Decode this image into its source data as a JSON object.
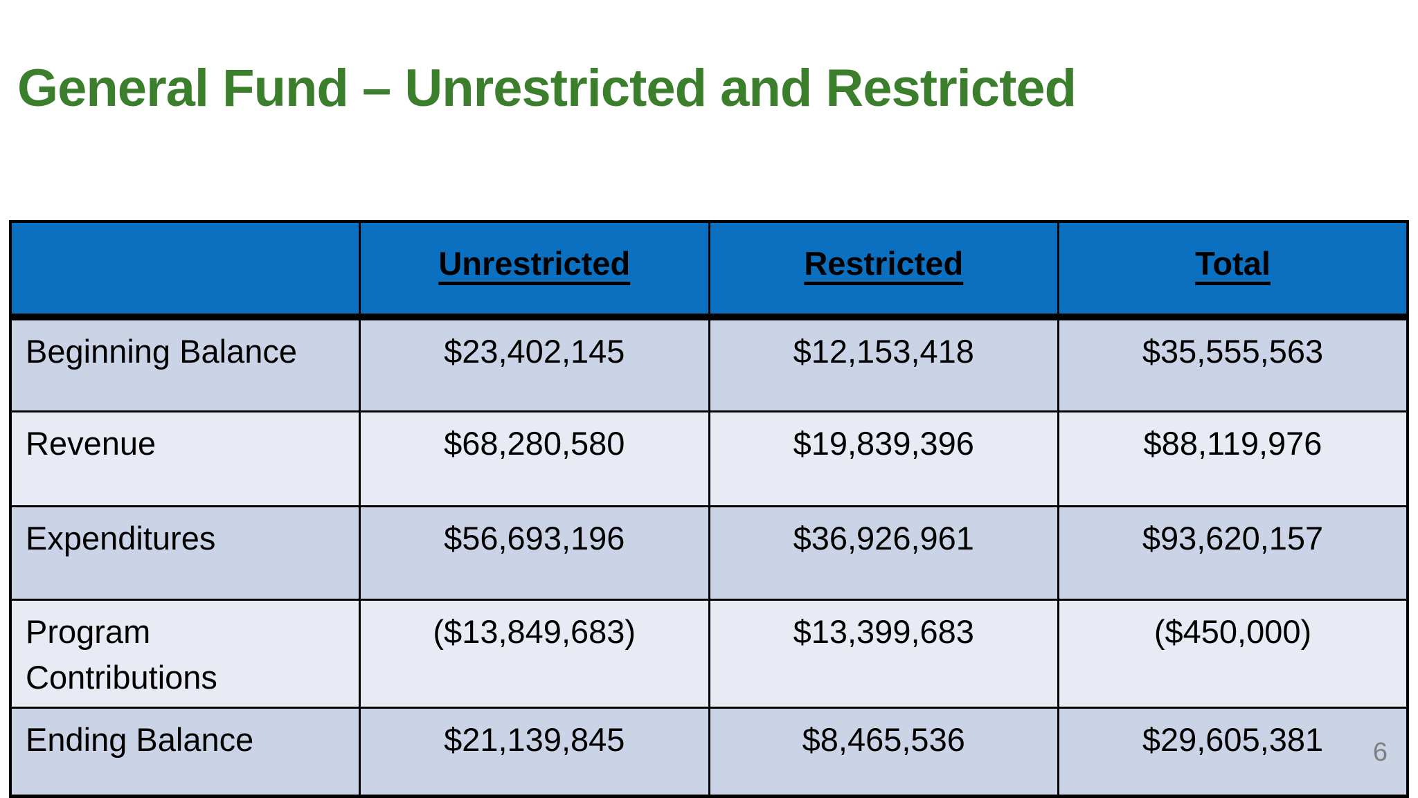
{
  "slide": {
    "title": "General Fund – Unrestricted and Restricted",
    "page_number": "6"
  },
  "colors": {
    "title_green": "#3B7E2B",
    "header_blue": "#0C70C0",
    "row_shade_dark": "#CBD4E6",
    "row_shade_light": "#E9EBF4",
    "border_black": "#000000",
    "page_number_gray": "#7F7F7F"
  },
  "table": {
    "headers": [
      "",
      "Unrestricted",
      "Restricted",
      "Total"
    ],
    "rows": [
      [
        "Beginning Balance",
        "$23,402,145",
        "$12,153,418",
        "$35,555,563"
      ],
      [
        "Revenue",
        "$68,280,580",
        "$19,839,396",
        "$88,119,976"
      ],
      [
        "Expenditures",
        "$56,693,196",
        "$36,926,961",
        "$93,620,157"
      ],
      [
        "Program Contributions",
        "($13,849,683)",
        "$13,399,683",
        "($450,000)"
      ],
      [
        "Ending Balance",
        "$21,139,845",
        "$8,465,536",
        "$29,605,381"
      ]
    ]
  }
}
